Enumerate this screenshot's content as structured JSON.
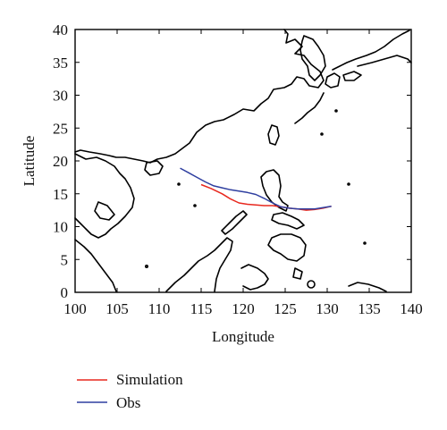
{
  "chart_data": {
    "type": "line",
    "title": "",
    "xlabel": "Longitude",
    "ylabel": "Latitude",
    "xlim": [
      100,
      140
    ],
    "ylim": [
      0,
      40
    ],
    "xticks": [
      "100",
      "105",
      "110",
      "115",
      "120",
      "125",
      "130",
      "135",
      "140"
    ],
    "yticks": [
      "0",
      "5",
      "10",
      "15",
      "20",
      "25",
      "30",
      "35",
      "40"
    ],
    "grid": false,
    "legend_position": "bottom-left, below plot",
    "series": [
      {
        "name": "Simulation",
        "color": "#e8281e",
        "x": [
          115.0,
          116.2,
          117.5,
          118.5,
          119.5,
          120.5,
          121.5,
          122.5,
          123.5,
          124.5,
          125.5,
          126.5,
          127.5,
          128.5,
          129.5,
          130.5
        ],
        "y": [
          16.4,
          15.8,
          15.0,
          14.2,
          13.6,
          13.4,
          13.3,
          13.2,
          13.2,
          13.0,
          12.8,
          12.7,
          12.5,
          12.6,
          12.8,
          13.1
        ]
      },
      {
        "name": "Obs",
        "color": "#2f3fa0",
        "x": [
          112.5,
          113.5,
          114.5,
          115.5,
          116.5,
          117.5,
          118.5,
          119.5,
          120.5,
          121.5,
          122.5,
          123.5,
          124.5,
          125.5,
          126.5,
          127.5,
          128.5,
          129.5,
          130.5
        ],
        "y": [
          18.9,
          18.2,
          17.5,
          16.8,
          16.2,
          15.9,
          15.6,
          15.4,
          15.2,
          14.9,
          14.3,
          13.6,
          13.0,
          12.8,
          12.7,
          12.7,
          12.7,
          12.9,
          13.1
        ]
      }
    ]
  }
}
